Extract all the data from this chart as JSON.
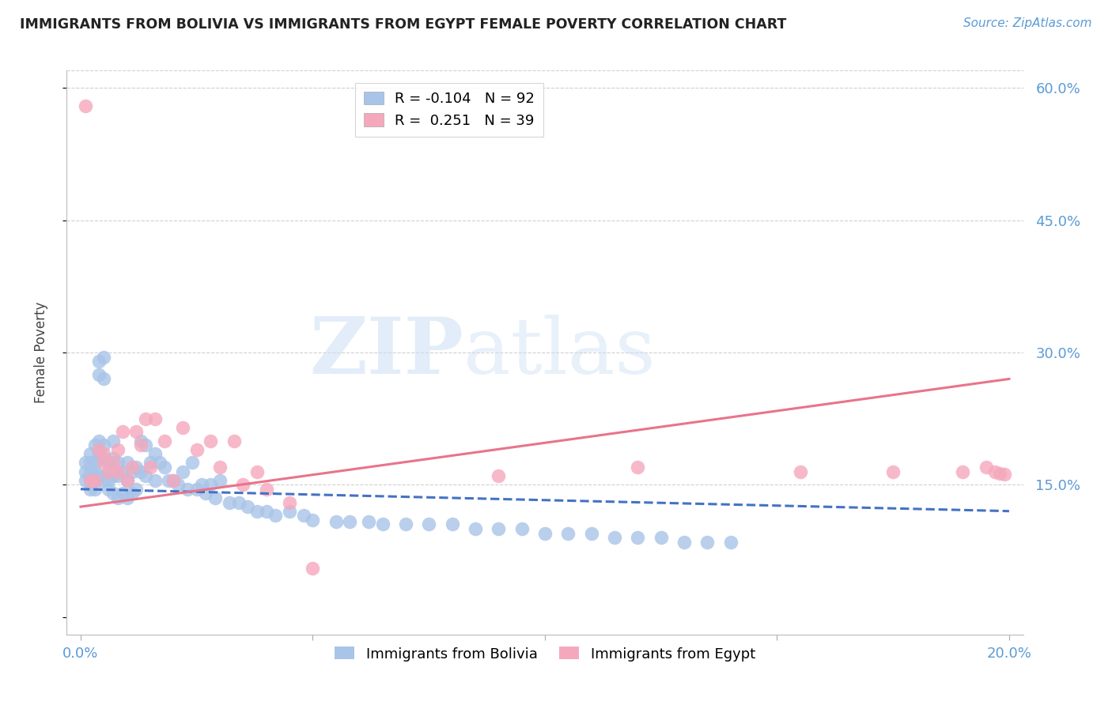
{
  "title": "IMMIGRANTS FROM BOLIVIA VS IMMIGRANTS FROM EGYPT FEMALE POVERTY CORRELATION CHART",
  "source": "Source: ZipAtlas.com",
  "ylabel": "Female Poverty",
  "bolivia_color": "#a8c4e8",
  "egypt_color": "#f5a8bc",
  "bolivia_R": -0.104,
  "bolivia_N": 92,
  "egypt_R": 0.251,
  "egypt_N": 39,
  "watermark_zip": "ZIP",
  "watermark_atlas": "atlas",
  "bolivia_line_color": "#4472c4",
  "egypt_line_color": "#e8748a",
  "xlim_min": 0.0,
  "xlim_max": 0.2,
  "ylim_min": 0.0,
  "ylim_max": 0.62,
  "yticks": [
    0.0,
    0.15,
    0.3,
    0.45,
    0.6
  ],
  "ytick_labels": [
    "",
    "15.0%",
    "30.0%",
    "45.0%",
    "60.0%"
  ],
  "xticks": [
    0.0,
    0.05,
    0.1,
    0.15,
    0.2
  ],
  "xtick_labels": [
    "0.0%",
    "",
    "",
    "",
    "20.0%"
  ],
  "bolivia_scatter_x": [
    0.001,
    0.001,
    0.001,
    0.002,
    0.002,
    0.002,
    0.002,
    0.002,
    0.003,
    0.003,
    0.003,
    0.003,
    0.003,
    0.004,
    0.004,
    0.004,
    0.004,
    0.004,
    0.005,
    0.005,
    0.005,
    0.005,
    0.005,
    0.006,
    0.006,
    0.006,
    0.006,
    0.007,
    0.007,
    0.007,
    0.007,
    0.008,
    0.008,
    0.008,
    0.009,
    0.009,
    0.01,
    0.01,
    0.01,
    0.011,
    0.011,
    0.012,
    0.012,
    0.013,
    0.013,
    0.014,
    0.014,
    0.015,
    0.016,
    0.016,
    0.017,
    0.018,
    0.019,
    0.02,
    0.021,
    0.022,
    0.023,
    0.024,
    0.025,
    0.026,
    0.027,
    0.028,
    0.029,
    0.03,
    0.032,
    0.034,
    0.036,
    0.038,
    0.04,
    0.042,
    0.045,
    0.048,
    0.05,
    0.055,
    0.058,
    0.062,
    0.065,
    0.07,
    0.075,
    0.08,
    0.085,
    0.09,
    0.095,
    0.1,
    0.105,
    0.11,
    0.115,
    0.12,
    0.125,
    0.13,
    0.135,
    0.14
  ],
  "bolivia_scatter_y": [
    0.175,
    0.165,
    0.155,
    0.185,
    0.175,
    0.165,
    0.155,
    0.145,
    0.195,
    0.175,
    0.165,
    0.155,
    0.145,
    0.29,
    0.275,
    0.2,
    0.185,
    0.16,
    0.295,
    0.27,
    0.195,
    0.18,
    0.155,
    0.175,
    0.165,
    0.155,
    0.145,
    0.2,
    0.18,
    0.16,
    0.14,
    0.175,
    0.16,
    0.135,
    0.165,
    0.14,
    0.175,
    0.155,
    0.135,
    0.165,
    0.14,
    0.17,
    0.145,
    0.2,
    0.165,
    0.195,
    0.16,
    0.175,
    0.185,
    0.155,
    0.175,
    0.17,
    0.155,
    0.155,
    0.15,
    0.165,
    0.145,
    0.175,
    0.145,
    0.15,
    0.14,
    0.15,
    0.135,
    0.155,
    0.13,
    0.13,
    0.125,
    0.12,
    0.12,
    0.115,
    0.12,
    0.115,
    0.11,
    0.108,
    0.108,
    0.108,
    0.105,
    0.105,
    0.105,
    0.105,
    0.1,
    0.1,
    0.1,
    0.095,
    0.095,
    0.095,
    0.09,
    0.09,
    0.09,
    0.085,
    0.085,
    0.085
  ],
  "egypt_scatter_x": [
    0.001,
    0.002,
    0.003,
    0.004,
    0.005,
    0.005,
    0.006,
    0.007,
    0.008,
    0.008,
    0.009,
    0.01,
    0.011,
    0.012,
    0.013,
    0.014,
    0.015,
    0.016,
    0.018,
    0.02,
    0.022,
    0.025,
    0.028,
    0.03,
    0.033,
    0.035,
    0.038,
    0.04,
    0.045,
    0.05,
    0.09,
    0.12,
    0.155,
    0.175,
    0.19,
    0.195,
    0.197,
    0.198,
    0.199
  ],
  "egypt_scatter_y": [
    0.58,
    0.155,
    0.155,
    0.19,
    0.175,
    0.185,
    0.165,
    0.175,
    0.19,
    0.165,
    0.21,
    0.155,
    0.17,
    0.21,
    0.195,
    0.225,
    0.17,
    0.225,
    0.2,
    0.155,
    0.215,
    0.19,
    0.2,
    0.17,
    0.2,
    0.15,
    0.165,
    0.145,
    0.13,
    0.055,
    0.16,
    0.17,
    0.165,
    0.165,
    0.165,
    0.17,
    0.165,
    0.163,
    0.162
  ]
}
